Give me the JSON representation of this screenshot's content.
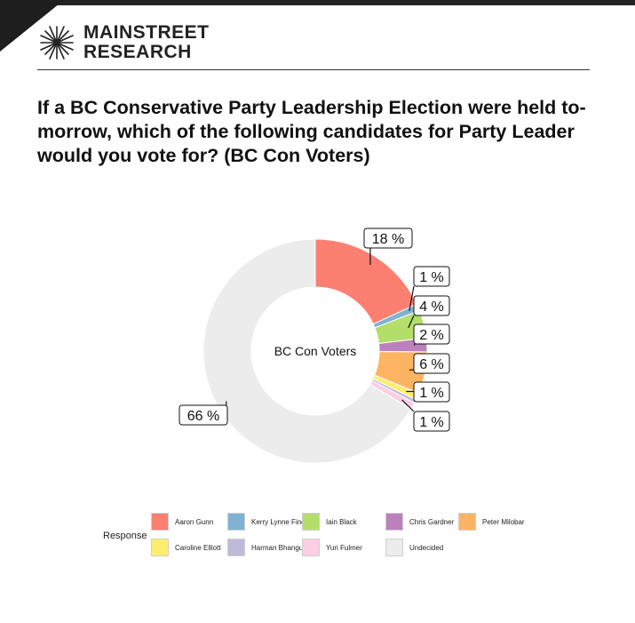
{
  "header": {
    "brand_line1": "MAINSTREET",
    "brand_line2": "RESEARCH",
    "question": "If a BC Conservative Party Leadership Election were held to-morrow, which of the following candidates for Party Leader would you vote for? (BC Con Voters)"
  },
  "chart_data": {
    "type": "pie",
    "subtype": "donut",
    "center_label": "BC Con Voters",
    "unit": "%",
    "legend_title": "Response",
    "slices": [
      {
        "label": "Aaron Gunn",
        "value": 18,
        "display": "18 %",
        "color": "#fb8072"
      },
      {
        "label": "Kerry Lynne Findlay",
        "value": 1,
        "display": "1 %",
        "color": "#80b1d3"
      },
      {
        "label": "Iain Black",
        "value": 4,
        "display": "4 %",
        "color": "#b3de69"
      },
      {
        "label": "Chris Gardner",
        "value": 2,
        "display": "2 %",
        "color": "#bc80bd"
      },
      {
        "label": "Peter Milobar",
        "value": 6,
        "display": "6 %",
        "color": "#fdb462"
      },
      {
        "label": "Caroline Elliott",
        "value": 1,
        "display": "1 %",
        "color": "#ffed6f"
      },
      {
        "label": "Harman Bhangu",
        "value": 0.5,
        "display": "",
        "color": "#bebada"
      },
      {
        "label": "Yuri Fulmer",
        "value": 1,
        "display": "1 %",
        "color": "#fccde5"
      },
      {
        "label": "Undecided",
        "value": 66,
        "display": "66 %",
        "color": "#ececec"
      }
    ]
  }
}
